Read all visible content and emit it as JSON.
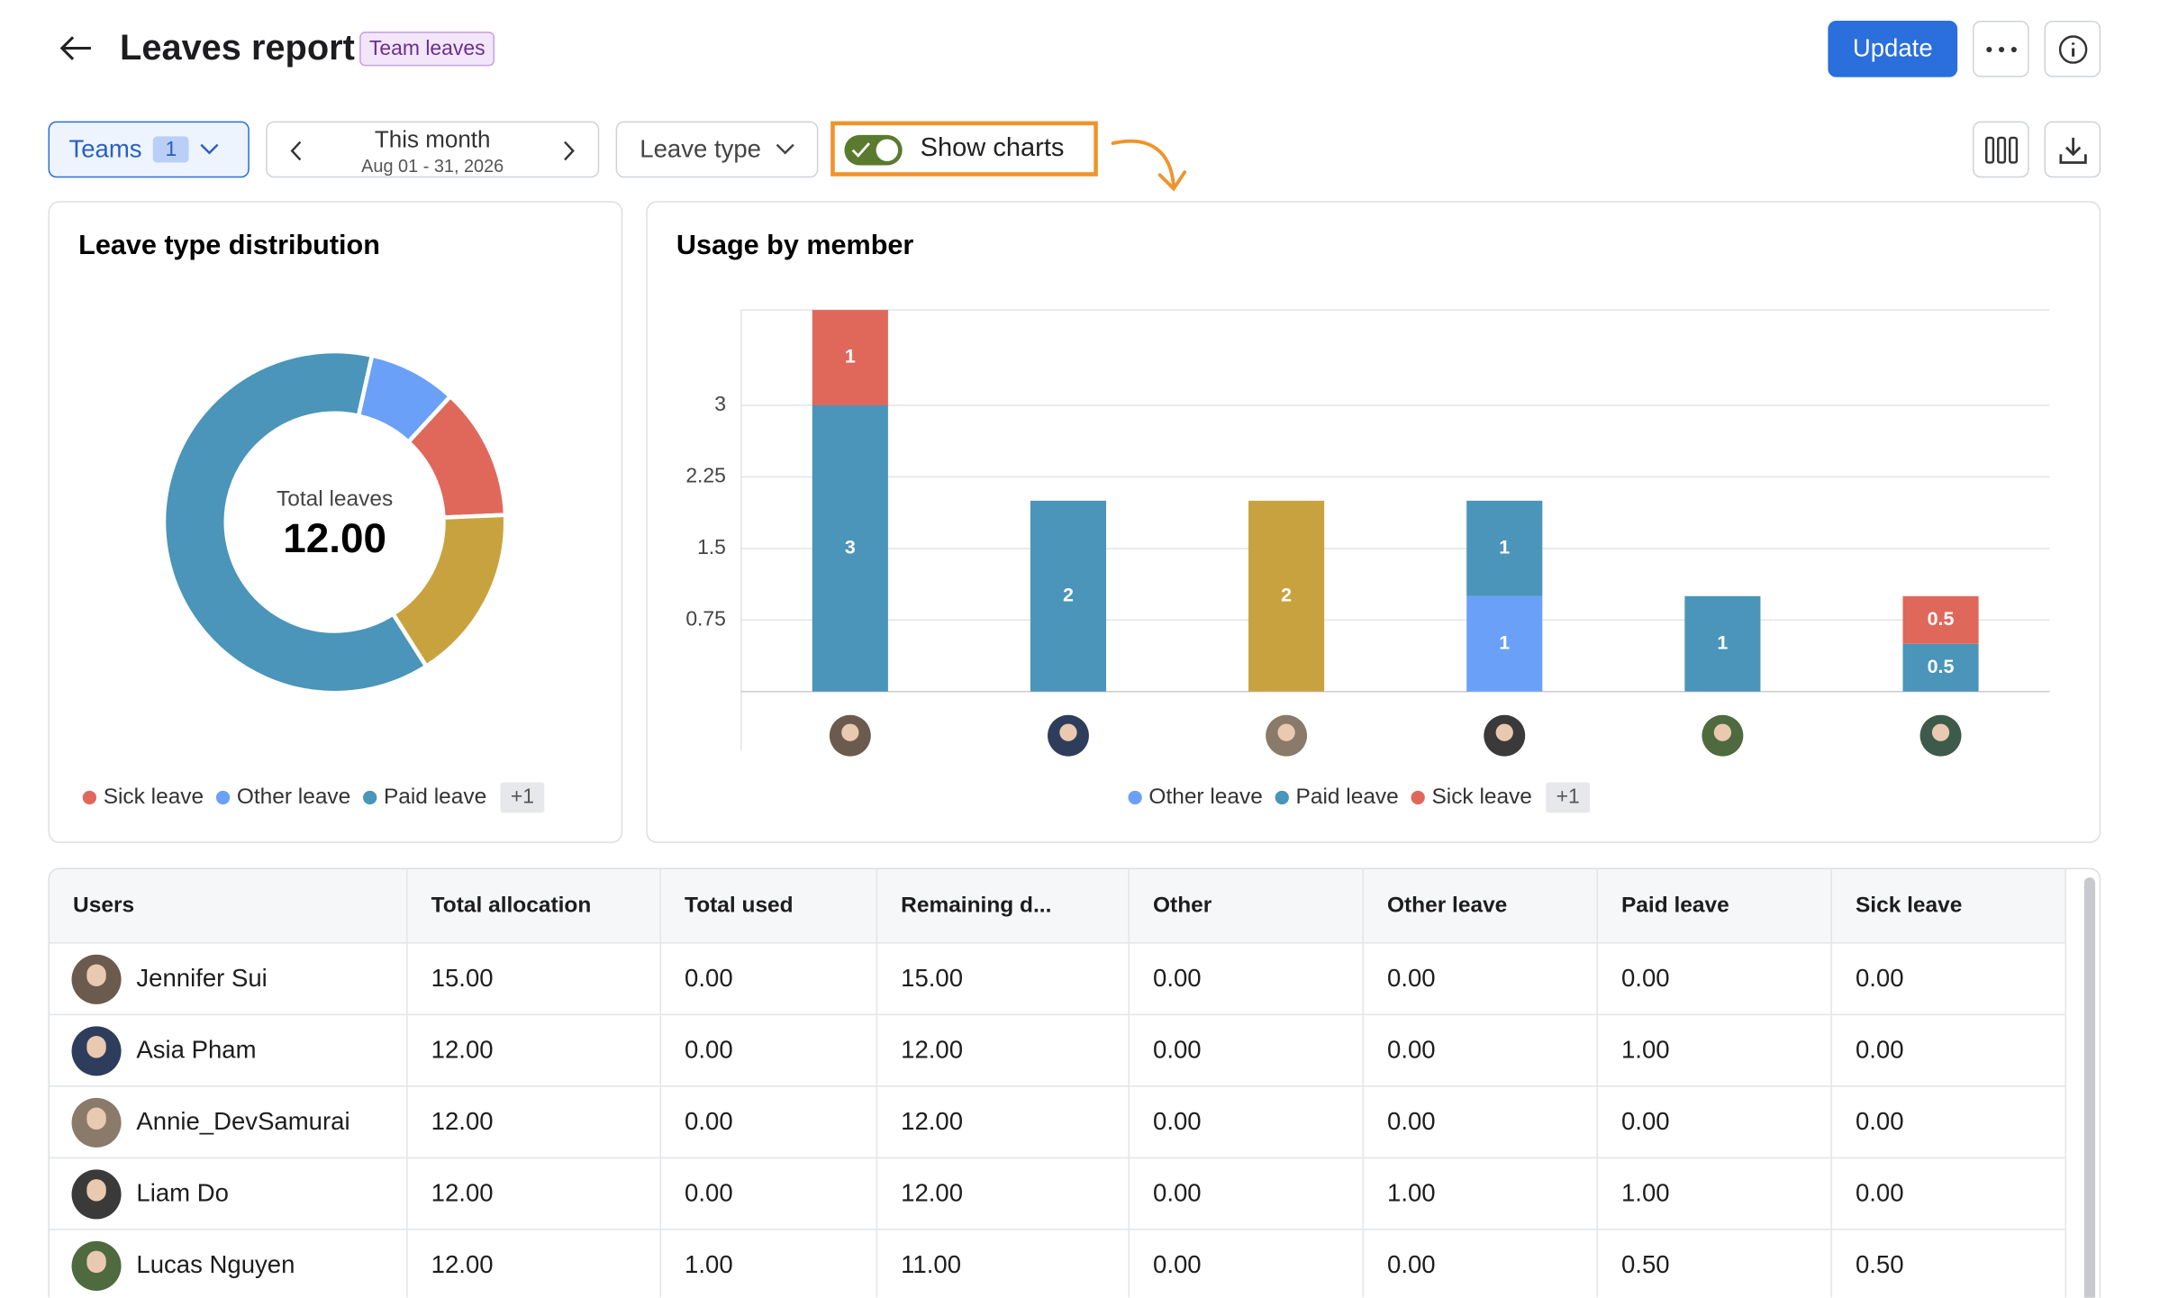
{
  "header": {
    "title": "Leaves report",
    "badge": "Team leaves",
    "update": "Update"
  },
  "toolbar": {
    "teams": "Teams",
    "teams_count": "1",
    "period": "This month",
    "period_range": "Aug 01 - 31, 2026",
    "leave_type": "Leave type",
    "show_charts": "Show charts"
  },
  "chart_data": [
    {
      "type": "pie",
      "title": "Leave type distribution",
      "center_label": "Total leaves",
      "center_value": "12.00",
      "categories": [
        "Other leave",
        "Sick leave",
        null,
        "Paid leave"
      ],
      "values": [
        1,
        1.5,
        2,
        7.5
      ],
      "colors": [
        "#6aa0f8",
        "#e0685a",
        "#c9a240",
        "#4a95b9"
      ],
      "legend_more": "+1"
    },
    {
      "type": "bar",
      "stacked": true,
      "title": "Usage by member",
      "categories": [
        null,
        null,
        null,
        null,
        null,
        null
      ],
      "series": [
        {
          "name": "Other leave",
          "color": "#6aa0f8",
          "values": [
            null,
            null,
            null,
            1,
            null,
            null
          ]
        },
        {
          "name": "Paid leave",
          "color": "#4a95b9",
          "values": [
            3,
            2,
            null,
            1,
            1,
            0.5
          ]
        },
        {
          "name": "Sick leave",
          "color": "#e0685a",
          "values": [
            1,
            null,
            null,
            null,
            null,
            0.5
          ]
        },
        {
          "name": null,
          "color": "#c9a240",
          "values": [
            null,
            null,
            2,
            null,
            null,
            null
          ]
        }
      ],
      "ylim": [
        0,
        4
      ],
      "yticks": [
        0.75,
        1.5,
        2.25,
        3
      ],
      "grid": true,
      "legend_more": "+1"
    }
  ],
  "table": {
    "columns": [
      "Users",
      "Total allocation",
      "Total used",
      "Remaining d...",
      "Other",
      "Other leave",
      "Paid leave",
      "Sick leave"
    ],
    "rows": [
      [
        "Jennifer Sui",
        "15.00",
        "0.00",
        "15.00",
        "0.00",
        "0.00",
        "0.00",
        "0.00"
      ],
      [
        "Asia Pham",
        "12.00",
        "0.00",
        "12.00",
        "0.00",
        "0.00",
        "1.00",
        "0.00"
      ],
      [
        "Annie_DevSamurai",
        "12.00",
        "0.00",
        "12.00",
        "0.00",
        "0.00",
        "0.00",
        "0.00"
      ],
      [
        "Liam Do",
        "12.00",
        "0.00",
        "12.00",
        "0.00",
        "1.00",
        "1.00",
        "0.00"
      ],
      [
        "Lucas Nguyen",
        "12.00",
        "1.00",
        "11.00",
        "0.00",
        "0.00",
        "0.50",
        "0.50"
      ]
    ]
  }
}
